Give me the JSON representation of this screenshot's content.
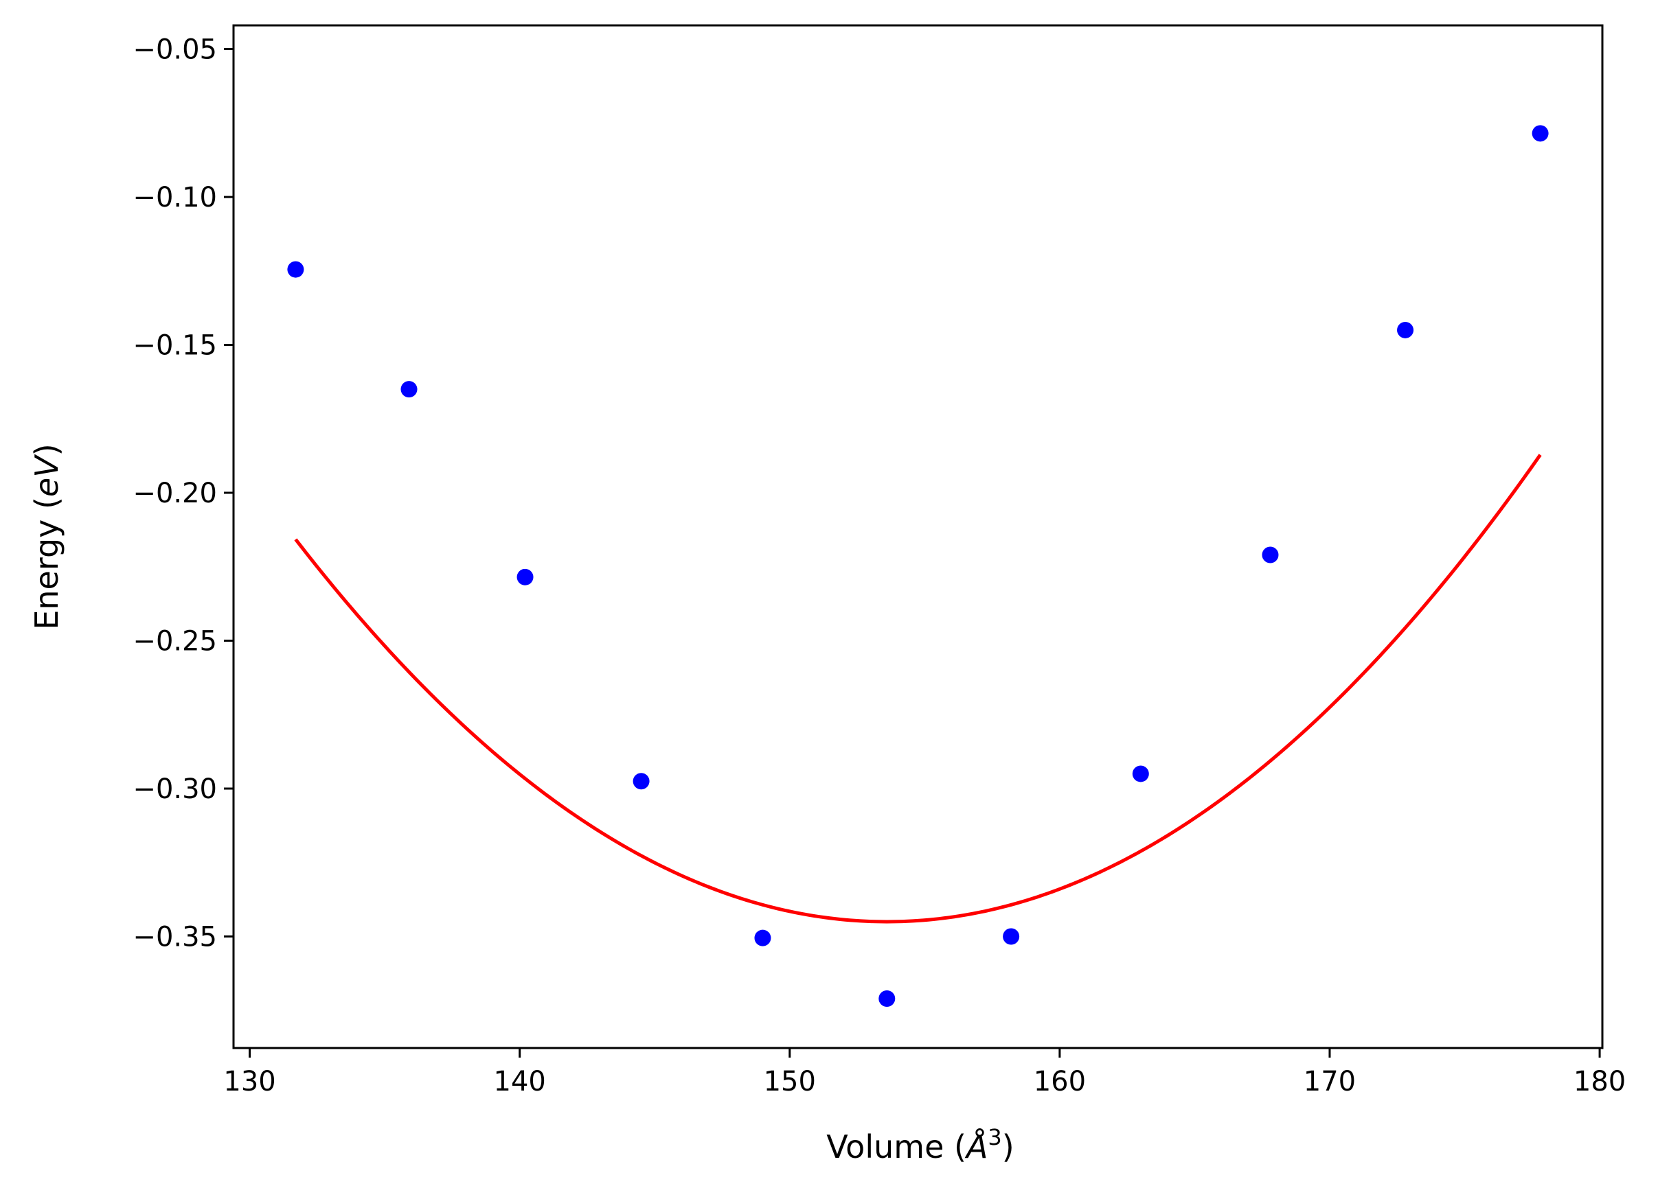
{
  "chart_data": {
    "type": "scatter",
    "xlabel": "Volume (",
    "xlabel_symbol": "Å",
    "xlabel_exponent": "3",
    "xlabel_close": ")",
    "ylabel": "Energy (",
    "ylabel_unit": "eV",
    "ylabel_close": ")",
    "xlim": [
      129.4,
      180.1
    ],
    "ylim": [
      -0.3877,
      -0.042
    ],
    "xticks": [
      130,
      140,
      150,
      160,
      170,
      180
    ],
    "xtick_labels": [
      "130",
      "140",
      "150",
      "160",
      "170",
      "180"
    ],
    "yticks": [
      -0.05,
      -0.1,
      -0.15,
      -0.2,
      -0.25,
      -0.3,
      -0.35
    ],
    "ytick_labels": [
      "−0.05",
      "−0.10",
      "−0.15",
      "−0.20",
      "−0.25",
      "−0.30",
      "−0.35"
    ],
    "grid": false,
    "series": [
      {
        "type": "scatter",
        "color": "#0000ff",
        "x": [
          131.7,
          135.9,
          140.2,
          144.5,
          149.0,
          153.6,
          158.2,
          163.0,
          167.8,
          172.8,
          177.8
        ],
        "y": [
          -0.1245,
          -0.165,
          -0.2285,
          -0.2975,
          -0.3505,
          -0.371,
          -0.35,
          -0.295,
          -0.221,
          -0.145,
          -0.0785
        ]
      },
      {
        "type": "line",
        "color": "#ff0000",
        "x_range": [
          131.7,
          177.8
        ],
        "polyfit": {
          "a": 0.0002695,
          "vmin": 153.6,
          "emin": -0.345
        }
      }
    ]
  }
}
